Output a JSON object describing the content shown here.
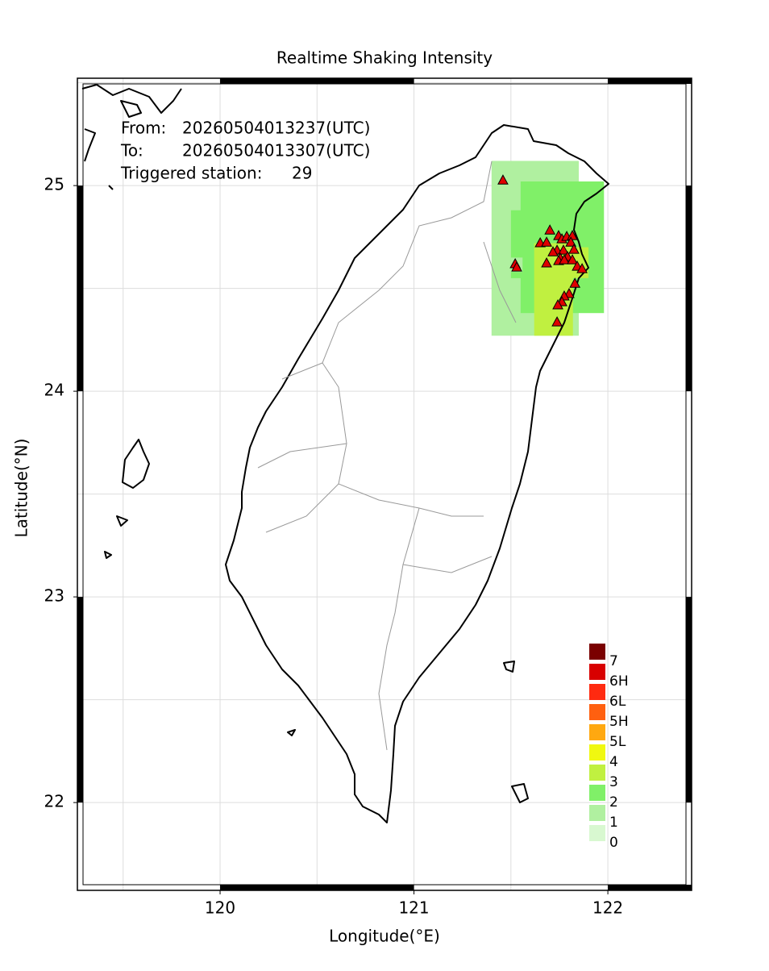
{
  "chart_data": {
    "type": "map",
    "title": "Realtime Shaking Intensity",
    "xlabel": "Longitude(°E)",
    "ylabel": "Latitude(°N)",
    "xlim": [
      119.264,
      122.432
    ],
    "ylim": [
      21.573,
      25.522
    ],
    "xticks": [
      120,
      121,
      122
    ],
    "yticks": [
      22,
      23,
      24,
      25
    ],
    "grid": true,
    "grid_step": 0.5,
    "info": [
      {
        "label": "From:",
        "value": "20260504013237(UTC)"
      },
      {
        "label": "To:",
        "value": "20260504013307(UTC)"
      }
    ],
    "triggered_label": "Triggered station:",
    "triggered_count": 29,
    "legend": {
      "labels": [
        "7",
        "6H",
        "6L",
        "5H",
        "5L",
        "4",
        "3",
        "2",
        "1",
        "0"
      ],
      "colors": [
        "#7a0000",
        "#d80000",
        "#ff2a10",
        "#ff6010",
        "#ffa810",
        "#f0f810",
        "#c0f040",
        "#80f068",
        "#b0f0a0",
        "#d8f8d0"
      ]
    },
    "cells": {
      "x0": [
        121.4,
        121.55,
        121.5,
        121.62,
        121.72,
        121.5
      ],
      "x1": [
        121.85,
        121.98,
        121.88,
        121.82,
        121.9,
        121.56
      ],
      "y0": [
        24.27,
        24.38,
        24.55,
        24.27,
        24.55,
        24.58
      ],
      "y1": [
        25.12,
        25.02,
        24.88,
        24.72,
        24.7,
        24.65
      ],
      "level": [
        "1",
        "2",
        "2",
        "3",
        "3",
        "1"
      ]
    },
    "stations": {
      "x": [
        121.459,
        121.522,
        121.53,
        121.701,
        121.651,
        121.684,
        121.746,
        121.763,
        121.788,
        121.817,
        121.809,
        121.738,
        121.771,
        121.825,
        121.717,
        121.755,
        121.792,
        121.684,
        121.746,
        121.775,
        121.817,
        121.842,
        121.867,
        121.83,
        121.8,
        121.775,
        121.763,
        121.742,
        121.738
      ],
      "y": [
        25.027,
        24.62,
        24.604,
        24.784,
        24.722,
        24.725,
        24.757,
        24.741,
        24.753,
        24.757,
        24.725,
        24.686,
        24.686,
        24.69,
        24.678,
        24.647,
        24.655,
        24.624,
        24.635,
        24.639,
        24.639,
        24.608,
        24.596,
        24.525,
        24.475,
        24.463,
        24.435,
        24.42,
        24.337
      ],
      "color": "#e00000"
    }
  }
}
